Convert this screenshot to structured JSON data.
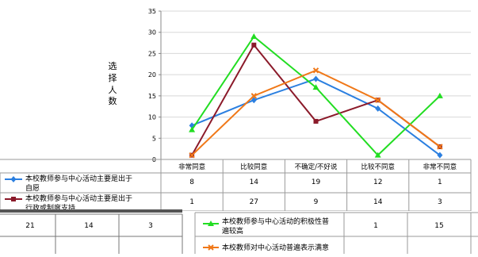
{
  "chart_data": {
    "type": "line",
    "ylabel": "选择人数",
    "ylim": [
      0,
      35
    ],
    "yticks": [
      0,
      5,
      10,
      15,
      20,
      25,
      30,
      35
    ],
    "grid": true,
    "categories": [
      "非常同意",
      "比较同意",
      "不确定/不好说",
      "比较不同意",
      "非常不同意"
    ],
    "series": [
      {
        "name_lines": [
          "本校教师参与中心活动主要是出于",
          "自愿"
        ],
        "color": "#2b7fe0",
        "marker": "diamond",
        "values": [
          8,
          14,
          19,
          12,
          1
        ]
      },
      {
        "name_lines": [
          "本校教师参与中心活动主要是出于",
          "行政或制度支持"
        ],
        "color": "#8b1a2a",
        "marker": "square",
        "values": [
          1,
          27,
          9,
          14,
          3
        ]
      },
      {
        "name_lines": [
          "本校教师参与中心活动的积极性普",
          "遍较高"
        ],
        "color": "#22dd22",
        "marker": "triangle",
        "values": [
          7,
          29,
          17,
          1,
          15
        ]
      },
      {
        "name_lines": [
          "本校教师对中心活动普遍表示满意"
        ],
        "color": "#f07818",
        "marker": "x",
        "values": [
          1,
          15,
          21,
          14,
          3
        ]
      }
    ],
    "table_rows_visible": [
      {
        "series": 0,
        "values": [
          "8",
          "14",
          "19",
          "12",
          "1"
        ]
      },
      {
        "series": 1,
        "values": [
          "1",
          "27",
          "9",
          "14",
          "3"
        ]
      },
      {
        "series": 2,
        "values": [
          "",
          "",
          "",
          "1",
          "15"
        ]
      }
    ],
    "fragment_row": [
      "21",
      "14",
      "3"
    ]
  }
}
